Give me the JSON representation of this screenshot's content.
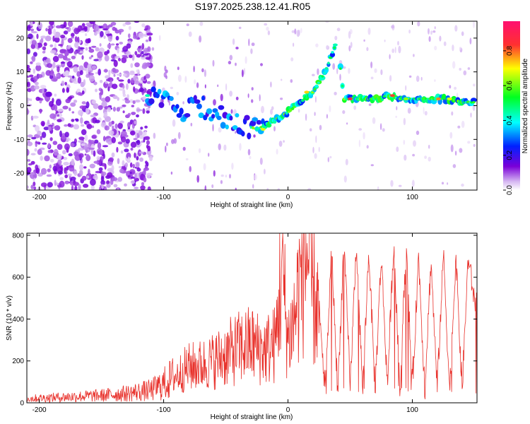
{
  "title": "S197.2025.238.12.41.R05",
  "colorbar": {
    "label": "Normalized spectral amplitude",
    "ticks": [
      "0.0",
      "0.2",
      "0.4",
      "0.6",
      "0.8"
    ],
    "tick_values": [
      0.0,
      0.2,
      0.4,
      0.6,
      0.8
    ],
    "range": [
      0,
      0.97
    ],
    "stops": [
      "#ffffff",
      "#7a00d8",
      "#0020ff",
      "#00ffff",
      "#00ff20",
      "#ffff00",
      "#ff3030",
      "#ff1070"
    ]
  },
  "chart_data": [
    {
      "type": "heatmap",
      "title": "",
      "xlabel": "Height of straight line (km)",
      "ylabel": "Frequency (Hz)",
      "xlim": [
        -210,
        152
      ],
      "ylim": [
        -25,
        25
      ],
      "xticks": [
        -200,
        -100,
        0,
        100
      ],
      "xtick_labels": [
        "-200",
        "-100",
        "0",
        "100"
      ],
      "yticks": [
        -20,
        -10,
        0,
        10,
        20
      ],
      "ytick_labels": [
        "-20",
        "-10",
        "0",
        "10",
        "20"
      ],
      "series": [
        {
          "name": "dominant frequency trace",
          "x": [
            -113,
            -100,
            -85,
            -70,
            -55,
            -40,
            -25,
            -10,
            0,
            10,
            20,
            30,
            37,
            40,
            45,
            52,
            58,
            70,
            80,
            90,
            100,
            110,
            120,
            130,
            140,
            150
          ],
          "y": [
            3,
            1,
            -2,
            0,
            -3,
            -5,
            -7,
            -4,
            -2,
            1,
            4,
            10,
            17,
            18,
            2,
            2,
            2,
            2,
            3,
            2,
            2,
            2,
            2,
            2,
            1,
            1
          ]
        }
      ]
    },
    {
      "type": "line",
      "title": "",
      "xlabel": "Height of straight line (km)",
      "ylabel": "SNR (10 * v/v)",
      "xlim": [
        -210,
        152
      ],
      "ylim": [
        0,
        810
      ],
      "xticks": [
        -200,
        -100,
        0,
        100
      ],
      "xtick_labels": [
        "-200",
        "-100",
        "0",
        "100"
      ],
      "yticks": [
        0,
        200,
        400,
        600,
        800
      ],
      "ytick_labels": [
        "0",
        "200",
        "400",
        "600",
        "800"
      ],
      "color": "#e8302a",
      "series": [
        {
          "name": "SNR",
          "x": [
            -210,
            -190,
            -170,
            -150,
            -130,
            -110,
            -100,
            -90,
            -80,
            -70,
            -60,
            -50,
            -40,
            -30,
            -20,
            -10,
            -5,
            0,
            5,
            10,
            15,
            20,
            25,
            30,
            35,
            40,
            45,
            50,
            55,
            60,
            65,
            70,
            75,
            80,
            85,
            90,
            95,
            100,
            105,
            110,
            115,
            120,
            125,
            130,
            135,
            140,
            145,
            150
          ],
          "y": [
            20,
            25,
            30,
            35,
            45,
            60,
            90,
            130,
            170,
            180,
            200,
            230,
            260,
            280,
            250,
            280,
            650,
            300,
            400,
            600,
            750,
            500,
            450,
            50,
            740,
            50,
            770,
            80,
            760,
            60,
            730,
            60,
            700,
            80,
            770,
            60,
            740,
            60,
            700,
            60,
            680,
            60,
            720,
            50,
            700,
            60,
            700,
            480
          ]
        }
      ]
    }
  ]
}
